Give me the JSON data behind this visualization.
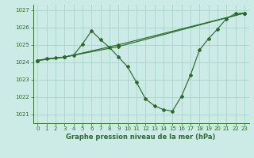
{
  "title": "Graphe pression niveau de la mer (hPa)",
  "bg": "#cceae6",
  "grid_color": "#aad4cf",
  "lc": "#2d6b2d",
  "xlim": [
    -0.5,
    23.5
  ],
  "ylim": [
    1020.5,
    1027.3
  ],
  "yticks": [
    1021,
    1022,
    1023,
    1024,
    1025,
    1026,
    1027
  ],
  "xticks": [
    0,
    1,
    2,
    3,
    4,
    5,
    6,
    7,
    8,
    9,
    10,
    11,
    12,
    13,
    14,
    15,
    16,
    17,
    18,
    19,
    20,
    21,
    22,
    23
  ],
  "line1_x": [
    0,
    1,
    2,
    3,
    4,
    5,
    6,
    7,
    8,
    9,
    10,
    11,
    12,
    13,
    14,
    15,
    16,
    17,
    18,
    19,
    20,
    21,
    22,
    23
  ],
  "line1_y": [
    1024.1,
    1024.2,
    1024.25,
    1024.3,
    1024.4,
    1025.05,
    1025.8,
    1025.3,
    1024.85,
    1024.3,
    1023.75,
    1022.85,
    1021.9,
    1021.5,
    1021.28,
    1021.2,
    1022.05,
    1023.25,
    1024.7,
    1025.35,
    1025.9,
    1026.5,
    1026.8,
    1026.82
  ],
  "line2_x": [
    0,
    3,
    9,
    23
  ],
  "line2_y": [
    1024.1,
    1024.3,
    1024.9,
    1026.82
  ],
  "line3_x": [
    0,
    3,
    9,
    23
  ],
  "line3_y": [
    1024.1,
    1024.3,
    1025.0,
    1026.82
  ]
}
